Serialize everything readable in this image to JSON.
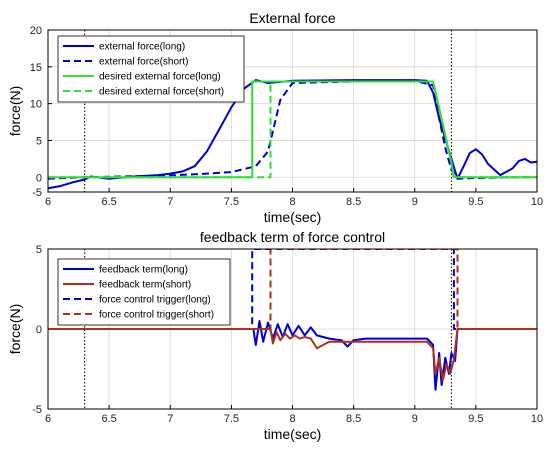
{
  "chart_data": [
    {
      "type": "line",
      "title": "External force",
      "xlabel": "time(sec)",
      "ylabel": "force(N)",
      "xlim": [
        6,
        10
      ],
      "ylim": [
        -2,
        20
      ],
      "xticks": [
        "6",
        "6.5",
        "7",
        "7.5",
        "8",
        "8.5",
        "9",
        "9.5",
        "10"
      ],
      "yticks": [
        "-5",
        "0",
        "5",
        "10",
        "15",
        "20"
      ],
      "grid": true,
      "legend_position": "top-left",
      "vlines": [
        6.3,
        9.3
      ],
      "series": [
        {
          "name": "external force(long)",
          "color": "#0000cc",
          "style": "solid",
          "x": [
            6.0,
            6.1,
            6.2,
            6.3,
            6.35,
            6.5,
            6.7,
            6.9,
            7.0,
            7.1,
            7.2,
            7.3,
            7.4,
            7.5,
            7.6,
            7.7,
            7.75,
            7.8,
            8.0,
            8.5,
            9.0,
            9.1,
            9.15,
            9.2,
            9.3,
            9.35,
            9.4,
            9.45,
            9.5,
            9.55,
            9.6,
            9.7,
            9.8,
            9.85,
            9.9,
            9.95,
            10.0
          ],
          "y": [
            -1.5,
            -1.2,
            -0.7,
            -0.3,
            0.1,
            -0.2,
            0.1,
            0.3,
            0.5,
            0.8,
            1.5,
            3.5,
            6.5,
            9.5,
            12.0,
            13.2,
            13.0,
            12.8,
            13.1,
            13.2,
            13.2,
            13.1,
            11.5,
            8.0,
            2.5,
            -0.2,
            1.5,
            3.3,
            3.8,
            3.1,
            1.8,
            0.3,
            1.2,
            2.2,
            2.5,
            2.0,
            2.1
          ]
        },
        {
          "name": "external force(short)",
          "color": "#0000cc",
          "style": "dashed",
          "x": [
            6.0,
            6.3,
            6.6,
            6.9,
            7.2,
            7.5,
            7.7,
            7.8,
            7.85,
            7.9,
            8.0,
            8.5,
            9.0,
            9.15,
            9.2,
            9.25,
            9.3,
            9.35,
            9.5,
            9.8,
            10.0
          ],
          "y": [
            -0.2,
            0.0,
            0.1,
            0.2,
            0.4,
            0.7,
            1.5,
            3.5,
            7.0,
            10.5,
            12.8,
            13.0,
            13.1,
            12.5,
            8.0,
            4.0,
            1.0,
            -0.2,
            -0.1,
            0.0,
            0.0
          ]
        },
        {
          "name": "desired external force(long)",
          "color": "#33dd33",
          "style": "solid",
          "x": [
            6.0,
            7.67,
            7.67,
            9.15,
            9.3,
            9.32,
            10.0
          ],
          "y": [
            0.0,
            0.0,
            13.0,
            13.0,
            2.0,
            0.0,
            0.0
          ]
        },
        {
          "name": "desired external force(short)",
          "color": "#33dd33",
          "style": "dashed",
          "x": [
            6.0,
            7.82,
            7.82,
            9.15,
            9.3,
            9.32,
            10.0
          ],
          "y": [
            0.0,
            0.0,
            13.0,
            13.0,
            2.0,
            0.0,
            0.0
          ]
        }
      ]
    },
    {
      "type": "line",
      "title": "feedback term of force control",
      "xlabel": "time(sec)",
      "ylabel": "force(N)",
      "xlim": [
        6,
        10
      ],
      "ylim": [
        -5,
        5
      ],
      "xticks": [
        "6",
        "6.5",
        "7",
        "7.5",
        "8",
        "8.5",
        "9",
        "9.5",
        "10"
      ],
      "yticks": [
        "-5",
        "0",
        "5"
      ],
      "grid": true,
      "legend_position": "top-left",
      "vlines": [
        6.3,
        9.3
      ],
      "series": [
        {
          "name": "feedback term(long)",
          "color": "#0000cc",
          "style": "solid",
          "x": [
            6.0,
            7.68,
            7.7,
            7.73,
            7.76,
            7.8,
            7.84,
            7.88,
            7.92,
            7.96,
            8.0,
            8.05,
            8.1,
            8.15,
            8.2,
            8.3,
            8.4,
            8.45,
            8.5,
            8.6,
            8.8,
            9.0,
            9.1,
            9.15,
            9.17,
            9.2,
            9.22,
            9.25,
            9.28,
            9.3,
            9.33,
            9.35,
            10.0
          ],
          "y": [
            0.0,
            0.0,
            -1.0,
            0.5,
            -0.8,
            0.4,
            -0.6,
            0.3,
            -0.5,
            0.3,
            -0.4,
            0.2,
            -0.4,
            0.1,
            -0.4,
            -0.6,
            -0.7,
            -1.1,
            -0.7,
            -0.6,
            -0.6,
            -0.6,
            -0.6,
            -1.0,
            -3.8,
            -1.5,
            -3.5,
            -1.8,
            -2.8,
            -1.5,
            -2.0,
            0.0,
            0.0
          ]
        },
        {
          "name": "feedback term(short)",
          "color": "#b03020",
          "style": "solid",
          "x": [
            6.0,
            7.82,
            7.84,
            7.87,
            7.9,
            7.94,
            7.98,
            8.02,
            8.06,
            8.1,
            8.15,
            8.2,
            8.3,
            8.5,
            8.8,
            9.0,
            9.1,
            9.15,
            9.17,
            9.2,
            9.23,
            9.26,
            9.29,
            9.32,
            9.35,
            10.0
          ],
          "y": [
            0.0,
            0.0,
            -0.9,
            -0.2,
            -0.7,
            -0.3,
            -0.6,
            -0.4,
            -0.6,
            -0.5,
            -0.6,
            -1.2,
            -0.8,
            -0.8,
            -0.8,
            -0.8,
            -0.8,
            -1.2,
            -2.8,
            -1.8,
            -3.2,
            -2.2,
            -2.8,
            -1.9,
            0.0,
            0.0
          ]
        },
        {
          "name": "force control trigger(long)",
          "color": "#0000cc",
          "style": "dashed",
          "x": [
            6.0,
            7.67,
            7.67,
            9.32,
            9.32,
            10.0
          ],
          "y": [
            0.0,
            0.0,
            5.0,
            5.0,
            0.0,
            0.0
          ]
        },
        {
          "name": "force control trigger(short)",
          "color": "#b03020",
          "style": "dashed",
          "x": [
            6.0,
            7.82,
            7.82,
            9.35,
            9.35,
            10.0
          ],
          "y": [
            0.0,
            0.0,
            5.0,
            5.0,
            0.0,
            0.0
          ]
        }
      ]
    }
  ]
}
